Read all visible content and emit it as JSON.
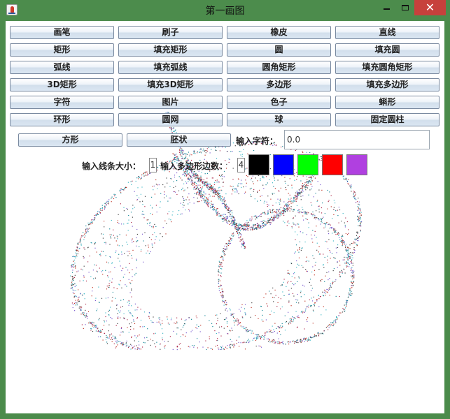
{
  "window": {
    "title": "第一画图"
  },
  "title_controls": {
    "minimize": "",
    "maximize": "",
    "close": "✕"
  },
  "tools": {
    "row1": [
      "画笔",
      "刷子",
      "橡皮",
      "直线"
    ],
    "row2": [
      "矩形",
      "填充矩形",
      "圆",
      "填充圆"
    ],
    "row3": [
      "弧线",
      "填充弧线",
      "圆角矩形",
      "填充圆角矩形"
    ],
    "row4": [
      "3D矩形",
      "填充3D矩形",
      "多边形",
      "填充多边形"
    ],
    "row5": [
      "字符",
      "图片",
      "色子",
      "蝌形"
    ],
    "row6": [
      "环形",
      "圆网",
      "球",
      "固定圆柱"
    ],
    "row7": [
      "方形",
      "胚状"
    ]
  },
  "text_input": {
    "label": "输入字符：",
    "value": "0.0"
  },
  "line_size": {
    "label": "输入线条大小：",
    "value": "1"
  },
  "polygon_sides": {
    "label": "输入多边形边数：",
    "value": "4"
  },
  "colors": [
    {
      "name": "black",
      "hex": "#000000"
    },
    {
      "name": "blue",
      "hex": "#0000ff"
    },
    {
      "name": "green",
      "hex": "#00ff00"
    },
    {
      "name": "red",
      "hex": "#ff0000"
    },
    {
      "name": "purple",
      "hex": "#b040e0"
    }
  ]
}
